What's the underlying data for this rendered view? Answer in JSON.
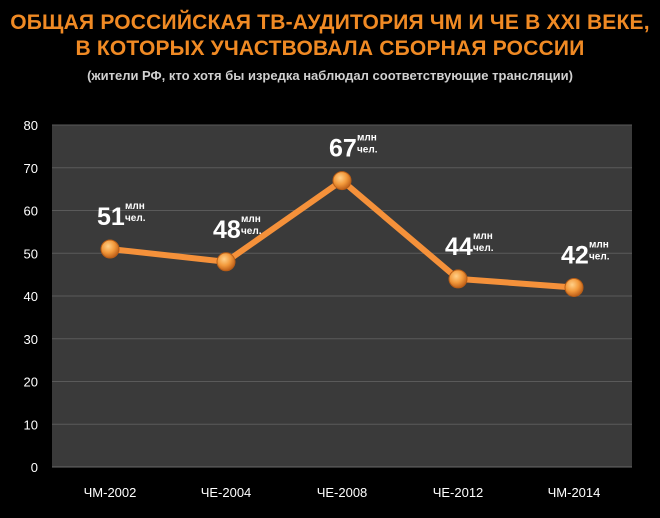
{
  "title_line1": "ОБЩАЯ РОССИЙСКАЯ ТВ-АУДИТОРИЯ ЧМ И ЧЕ В XXI ВЕКЕ,",
  "title_line2": "В КОТОРЫХ УЧАСТВОВАЛА СБОРНАЯ РОССИИ",
  "subtitle": "(жители РФ, кто хотя бы изредка наблюдал соответствующие трансляции)",
  "colors": {
    "background": "#000000",
    "plot_area": "#3a3a3a",
    "title": "#f08a24",
    "line": "#f5913a",
    "marker": "#f39a3c",
    "grid": "#5a5a5a"
  },
  "chart_data": {
    "type": "line",
    "categories": [
      "ЧМ-2002",
      "ЧЕ-2004",
      "ЧЕ-2008",
      "ЧЕ-2012",
      "ЧМ-2014"
    ],
    "values": [
      51,
      48,
      67,
      44,
      42
    ],
    "value_unit_top": "млн",
    "value_unit_bottom": "чел.",
    "ylim": [
      0,
      80
    ],
    "yticks": [
      0,
      10,
      20,
      30,
      40,
      50,
      60,
      70,
      80
    ],
    "grid": true,
    "legend": false
  }
}
